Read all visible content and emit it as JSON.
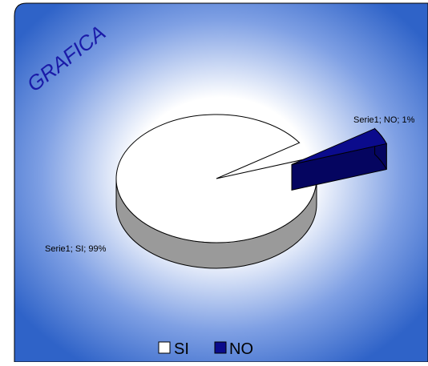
{
  "chart_data": {
    "type": "pie",
    "style": "3d",
    "title": "GRAFICA",
    "categories": [
      "SI",
      "NO"
    ],
    "values": [
      99,
      1
    ],
    "series": [
      {
        "name": "Serie1",
        "values": [
          99,
          1
        ]
      }
    ],
    "data_labels": [
      "Serie1; SI; 99%",
      "Serie1; NO; 1%"
    ],
    "legend": {
      "placement": "bottom",
      "entries": [
        {
          "label": "SI",
          "color": "#ffffff"
        },
        {
          "label": "NO",
          "color": "#0b0b8c"
        }
      ]
    },
    "exploded_slice": "NO",
    "colors": {
      "slice_si": "#ffffff",
      "slice_si_side": "#9a9a9a",
      "slice_no": "#0b0b8c",
      "slice_no_side": "#050560",
      "background_edge": "#2f63c8",
      "background_center": "#ffffff",
      "title": "#1a1aa8"
    }
  }
}
